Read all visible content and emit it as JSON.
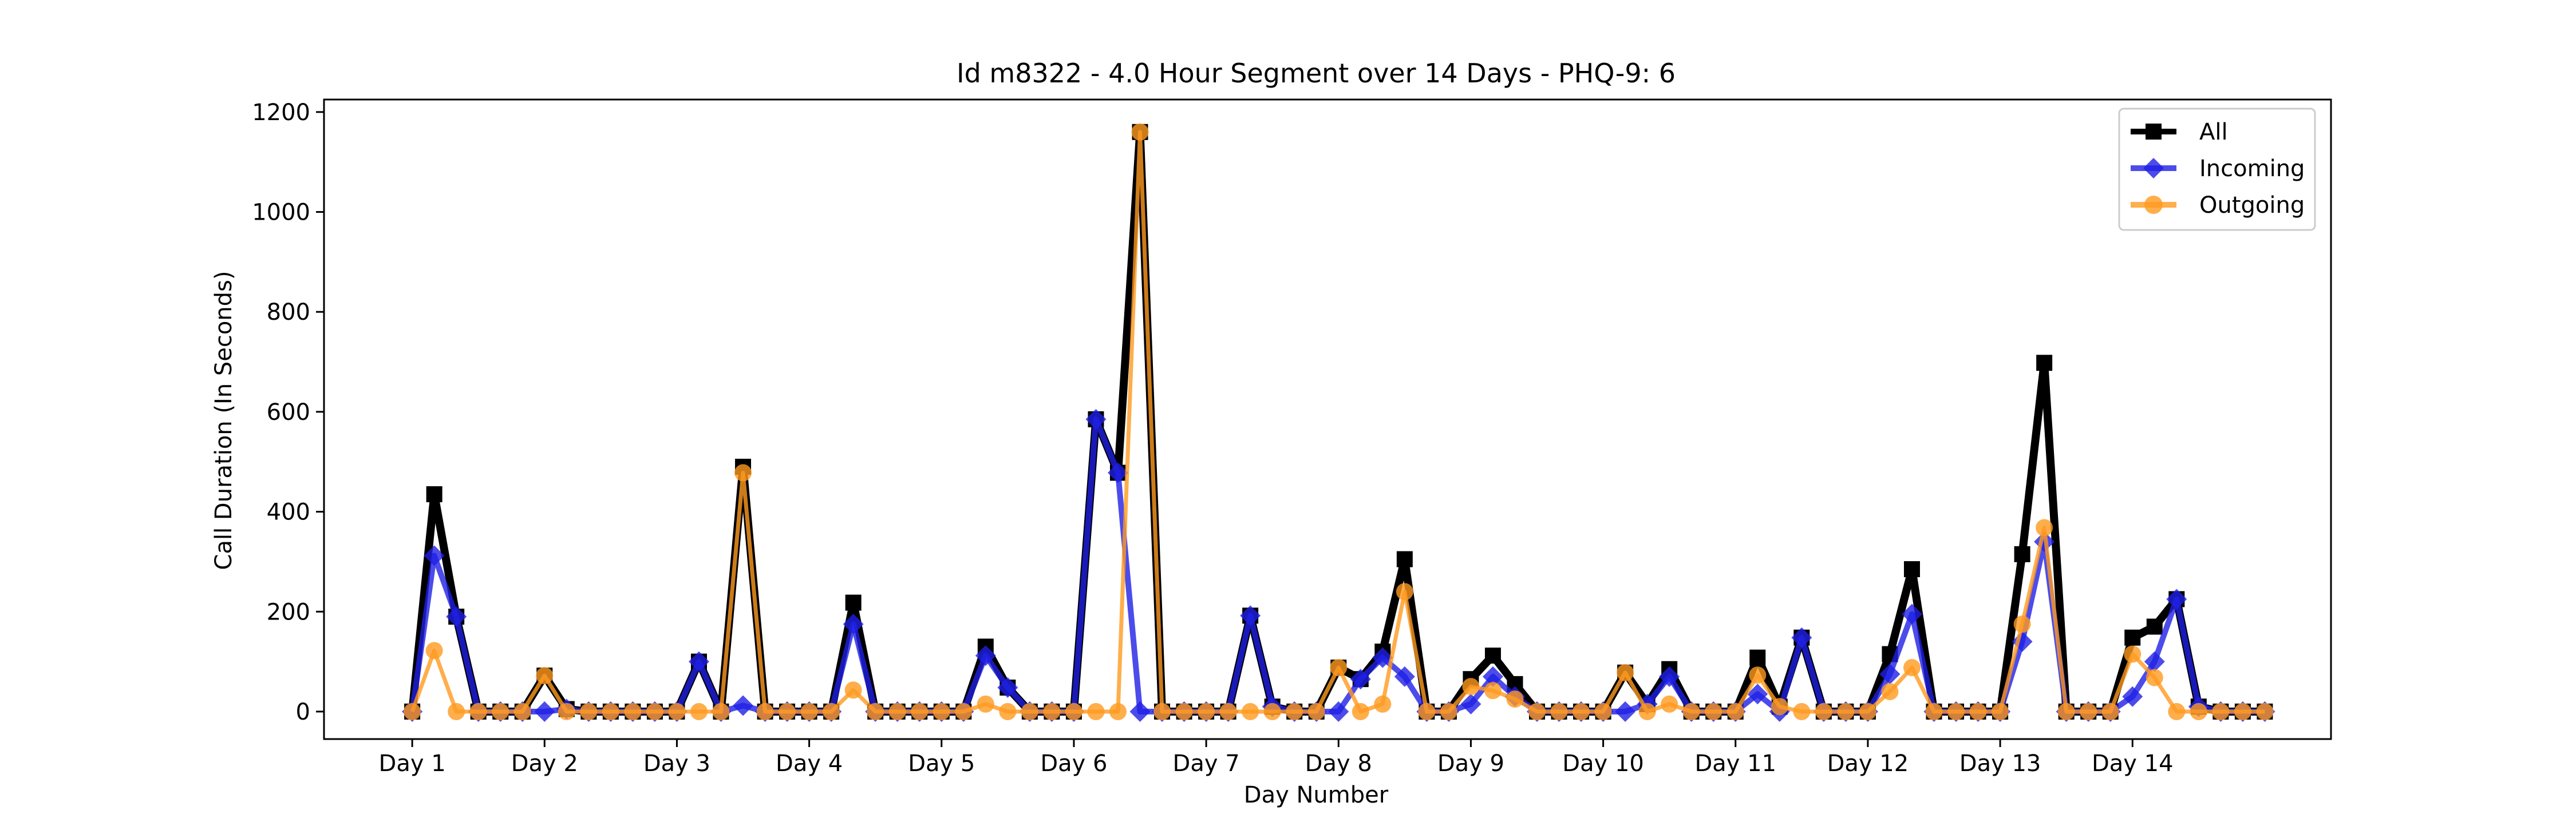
{
  "chart_data": {
    "type": "line",
    "title": "Id m8322 - 4.0 Hour Segment over 14 Days - PHQ-9: 6",
    "xlabel": "Day Number",
    "ylabel": "Call Duration (In Seconds)",
    "ylim": [
      -55,
      1225
    ],
    "xlim": [
      -4,
      87
    ],
    "yticks": [
      0,
      200,
      400,
      600,
      800,
      1000,
      1200
    ],
    "x_tick_positions": [
      0,
      6,
      12,
      18,
      24,
      30,
      36,
      42,
      48,
      54,
      60,
      66,
      72,
      78
    ],
    "x_tick_labels": [
      "Day 1",
      "Day 2",
      "Day 3",
      "Day 4",
      "Day 5",
      "Day 6",
      "Day 7",
      "Day 8",
      "Day 9",
      "Day 10",
      "Day 11",
      "Day 12",
      "Day 13",
      "Day 14"
    ],
    "legend_position": "top-right",
    "grid": false,
    "series": [
      {
        "name": "All",
        "color": "#000000",
        "marker": "square",
        "values": [
          0,
          435,
          190,
          0,
          0,
          0,
          72,
          5,
          0,
          0,
          0,
          0,
          0,
          100,
          0,
          490,
          0,
          0,
          0,
          0,
          218,
          0,
          0,
          0,
          0,
          0,
          130,
          48,
          0,
          0,
          0,
          585,
          478,
          1160,
          0,
          0,
          0,
          0,
          192,
          10,
          0,
          0,
          88,
          65,
          120,
          305,
          0,
          0,
          65,
          112,
          55,
          0,
          0,
          0,
          0,
          78,
          15,
          85,
          0,
          0,
          0,
          108,
          10,
          148,
          0,
          0,
          0,
          115,
          285,
          0,
          0,
          0,
          0,
          315,
          698,
          0,
          0,
          0,
          148,
          170,
          225,
          10,
          0,
          0,
          0
        ]
      },
      {
        "name": "Incoming",
        "color": "#1f1fe6",
        "marker": "diamond",
        "values": [
          0,
          312,
          190,
          0,
          0,
          0,
          0,
          5,
          0,
          0,
          0,
          0,
          0,
          100,
          0,
          12,
          0,
          0,
          0,
          0,
          175,
          0,
          0,
          0,
          0,
          0,
          112,
          48,
          0,
          0,
          0,
          585,
          478,
          0,
          0,
          0,
          0,
          0,
          192,
          10,
          0,
          0,
          0,
          65,
          108,
          70,
          0,
          0,
          15,
          70,
          30,
          0,
          0,
          0,
          0,
          0,
          15,
          70,
          0,
          0,
          0,
          35,
          0,
          148,
          0,
          0,
          0,
          75,
          195,
          0,
          0,
          0,
          0,
          140,
          340,
          0,
          0,
          0,
          30,
          100,
          225,
          10,
          0,
          0,
          0
        ]
      },
      {
        "name": "Outgoing",
        "color": "#ff9a1f",
        "marker": "circle",
        "values": [
          0,
          122,
          0,
          0,
          0,
          0,
          72,
          0,
          0,
          0,
          0,
          0,
          0,
          0,
          0,
          478,
          0,
          0,
          0,
          0,
          43,
          0,
          0,
          0,
          0,
          0,
          15,
          0,
          0,
          0,
          0,
          0,
          0,
          1160,
          0,
          0,
          0,
          0,
          0,
          0,
          0,
          0,
          88,
          0,
          15,
          240,
          0,
          0,
          50,
          42,
          25,
          0,
          0,
          0,
          0,
          78,
          0,
          15,
          0,
          0,
          0,
          73,
          10,
          0,
          0,
          0,
          0,
          40,
          88,
          0,
          0,
          0,
          0,
          175,
          368,
          0,
          0,
          0,
          115,
          68,
          0,
          0,
          0,
          0,
          0
        ]
      }
    ]
  }
}
